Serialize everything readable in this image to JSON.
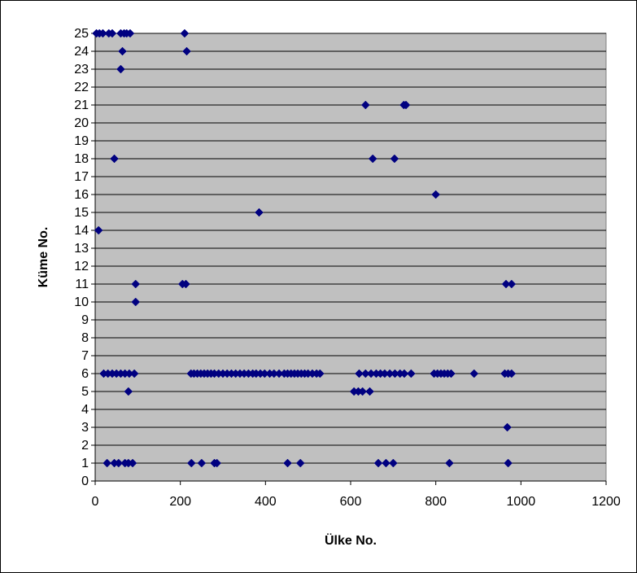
{
  "chart_data": {
    "type": "scatter",
    "title": "",
    "xlabel": "Ülke No.",
    "ylabel": "Küme No.",
    "xlim": [
      0,
      1200
    ],
    "ylim": [
      0,
      25
    ],
    "x_ticks": [
      0,
      200,
      400,
      600,
      800,
      1000,
      1200
    ],
    "y_ticks": [
      0,
      1,
      2,
      3,
      4,
      5,
      6,
      7,
      8,
      9,
      10,
      11,
      12,
      13,
      14,
      15,
      16,
      17,
      18,
      19,
      20,
      21,
      22,
      23,
      24,
      25
    ],
    "grid": "horizontal",
    "colors": {
      "plot_area": "#c0c0c0",
      "marker": "#000080",
      "gridline": "#000000"
    },
    "series": [
      {
        "marker": "diamond",
        "points": [
          [
            3,
            25
          ],
          [
            10,
            25
          ],
          [
            18,
            25
          ],
          [
            32,
            25
          ],
          [
            40,
            25
          ],
          [
            60,
            25
          ],
          [
            68,
            25
          ],
          [
            74,
            25
          ],
          [
            82,
            25
          ],
          [
            210,
            25
          ],
          [
            64,
            24
          ],
          [
            215,
            24
          ],
          [
            60,
            23
          ],
          [
            635,
            21
          ],
          [
            725,
            21
          ],
          [
            730,
            21
          ],
          [
            45,
            18
          ],
          [
            652,
            18
          ],
          [
            703,
            18
          ],
          [
            800,
            16
          ],
          [
            385,
            15
          ],
          [
            8,
            14
          ],
          [
            95,
            11
          ],
          [
            205,
            11
          ],
          [
            213,
            11
          ],
          [
            965,
            11
          ],
          [
            978,
            11
          ],
          [
            95,
            10
          ],
          [
            20,
            6
          ],
          [
            30,
            6
          ],
          [
            40,
            6
          ],
          [
            50,
            6
          ],
          [
            60,
            6
          ],
          [
            70,
            6
          ],
          [
            80,
            6
          ],
          [
            92,
            6
          ],
          [
            225,
            6
          ],
          [
            232,
            6
          ],
          [
            240,
            6
          ],
          [
            248,
            6
          ],
          [
            256,
            6
          ],
          [
            264,
            6
          ],
          [
            272,
            6
          ],
          [
            280,
            6
          ],
          [
            290,
            6
          ],
          [
            300,
            6
          ],
          [
            310,
            6
          ],
          [
            320,
            6
          ],
          [
            330,
            6
          ],
          [
            340,
            6
          ],
          [
            350,
            6
          ],
          [
            360,
            6
          ],
          [
            370,
            6
          ],
          [
            378,
            6
          ],
          [
            388,
            6
          ],
          [
            398,
            6
          ],
          [
            410,
            6
          ],
          [
            420,
            6
          ],
          [
            432,
            6
          ],
          [
            444,
            6
          ],
          [
            452,
            6
          ],
          [
            460,
            6
          ],
          [
            468,
            6
          ],
          [
            476,
            6
          ],
          [
            484,
            6
          ],
          [
            492,
            6
          ],
          [
            500,
            6
          ],
          [
            510,
            6
          ],
          [
            520,
            6
          ],
          [
            528,
            6
          ],
          [
            620,
            6
          ],
          [
            635,
            6
          ],
          [
            648,
            6
          ],
          [
            660,
            6
          ],
          [
            670,
            6
          ],
          [
            680,
            6
          ],
          [
            692,
            6
          ],
          [
            704,
            6
          ],
          [
            716,
            6
          ],
          [
            726,
            6
          ],
          [
            742,
            6
          ],
          [
            796,
            6
          ],
          [
            804,
            6
          ],
          [
            812,
            6
          ],
          [
            820,
            6
          ],
          [
            828,
            6
          ],
          [
            836,
            6
          ],
          [
            890,
            6
          ],
          [
            962,
            6
          ],
          [
            970,
            6
          ],
          [
            978,
            6
          ],
          [
            608,
            5
          ],
          [
            618,
            5
          ],
          [
            628,
            5
          ],
          [
            645,
            5
          ],
          [
            78,
            5
          ],
          [
            968,
            3
          ],
          [
            28,
            1
          ],
          [
            45,
            1
          ],
          [
            55,
            1
          ],
          [
            70,
            1
          ],
          [
            78,
            1
          ],
          [
            88,
            1
          ],
          [
            226,
            1
          ],
          [
            250,
            1
          ],
          [
            280,
            1
          ],
          [
            286,
            1
          ],
          [
            452,
            1
          ],
          [
            482,
            1
          ],
          [
            665,
            1
          ],
          [
            683,
            1
          ],
          [
            700,
            1
          ],
          [
            832,
            1
          ],
          [
            970,
            1
          ]
        ]
      }
    ]
  }
}
